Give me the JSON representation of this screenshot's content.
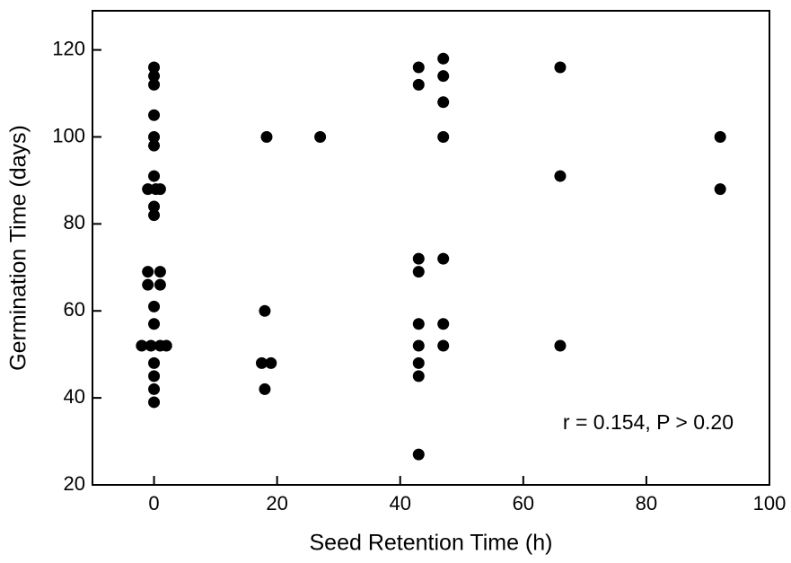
{
  "chart_data": {
    "type": "scatter",
    "x_label": "Seed Retention Time (h)",
    "y_label": "Germination Time (days)",
    "annotation": "r = 0.154, P > 0.20",
    "color": "#000000",
    "x": [
      0,
      0,
      0,
      0,
      0,
      0,
      0,
      -1,
      0.3,
      1,
      0,
      0,
      -1,
      1,
      -1,
      1,
      0,
      0,
      -2,
      -0.5,
      1,
      2,
      0,
      0,
      0,
      0,
      18.3,
      18,
      17.5,
      19,
      18,
      27,
      43,
      43,
      43,
      43,
      43,
      43,
      43,
      43,
      43,
      47,
      47,
      47,
      47,
      47,
      47,
      47,
      66,
      66,
      66,
      92,
      92
    ],
    "y": [
      116,
      114,
      112,
      105,
      100,
      98,
      91,
      88,
      88,
      88,
      84,
      82,
      69,
      69,
      66,
      66,
      61,
      57,
      52,
      52,
      52,
      52,
      48,
      45,
      42,
      39,
      100,
      60,
      48,
      48,
      42,
      100,
      116,
      112,
      72,
      69,
      57,
      52,
      48,
      45,
      27,
      118,
      114,
      108,
      100,
      72,
      57,
      52,
      116,
      91,
      52,
      100,
      88
    ],
    "xlim": [
      -10,
      100
    ],
    "xticks": [
      0,
      20,
      40,
      60,
      80,
      100
    ],
    "ylim": [
      20,
      129
    ],
    "yticks": [
      20,
      40,
      60,
      80,
      100,
      120
    ]
  }
}
